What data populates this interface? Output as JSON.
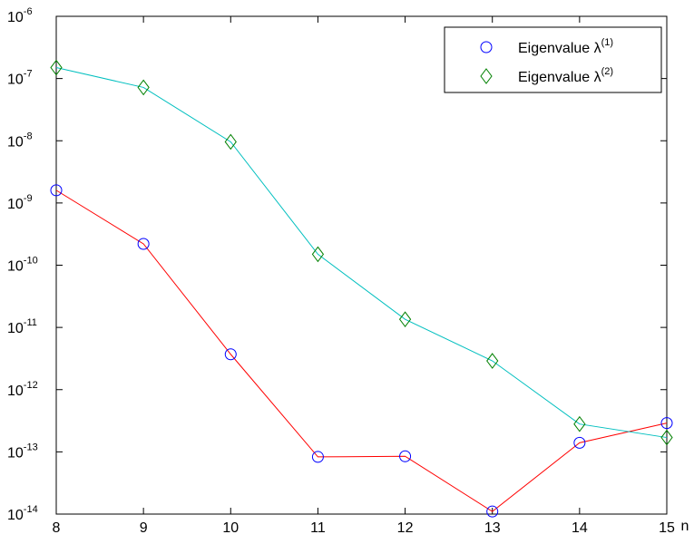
{
  "chart_data": {
    "type": "line",
    "title": "",
    "xlabel": "n",
    "ylabel": "",
    "yscale": "log",
    "xlim": [
      8,
      15
    ],
    "ylim": [
      1e-14,
      1e-06
    ],
    "x": [
      8,
      9,
      10,
      11,
      12,
      13,
      14,
      15
    ],
    "x_ticks": [
      "8",
      "9",
      "10",
      "11",
      "12",
      "13",
      "14",
      "15"
    ],
    "y_ticks": [
      {
        "base": "10",
        "exp": "-14",
        "value": 1e-14
      },
      {
        "base": "10",
        "exp": "-13",
        "value": 1e-13
      },
      {
        "base": "10",
        "exp": "-12",
        "value": 1e-12
      },
      {
        "base": "10",
        "exp": "-11",
        "value": 1e-11
      },
      {
        "base": "10",
        "exp": "-10",
        "value": 1e-10
      },
      {
        "base": "10",
        "exp": "-9",
        "value": 1e-09
      },
      {
        "base": "10",
        "exp": "-8",
        "value": 1e-08
      },
      {
        "base": "10",
        "exp": "-7",
        "value": 1e-07
      },
      {
        "base": "10",
        "exp": "-6",
        "value": 1e-06
      }
    ],
    "grid": false,
    "legend_position": "top-right",
    "series": [
      {
        "label_prefix": "Eigenvalue  λ",
        "label_sup": "(1)",
        "marker": "circle",
        "marker_color": "#0000ff",
        "line_color": "#ff0000",
        "values": [
          1.6e-09,
          2.2e-10,
          3.7e-12,
          8.3e-14,
          8.5e-14,
          1.1e-14,
          1.4e-13,
          2.9e-13
        ]
      },
      {
        "label_prefix": "Eigenvalue  λ",
        "label_sup": "(2)",
        "marker": "diamond",
        "marker_color": "#008000",
        "line_color": "#00bfbf",
        "values": [
          1.5e-07,
          7.2e-08,
          9.6e-09,
          1.5e-10,
          1.35e-11,
          2.9e-12,
          2.8e-13,
          1.7e-13
        ]
      }
    ]
  }
}
